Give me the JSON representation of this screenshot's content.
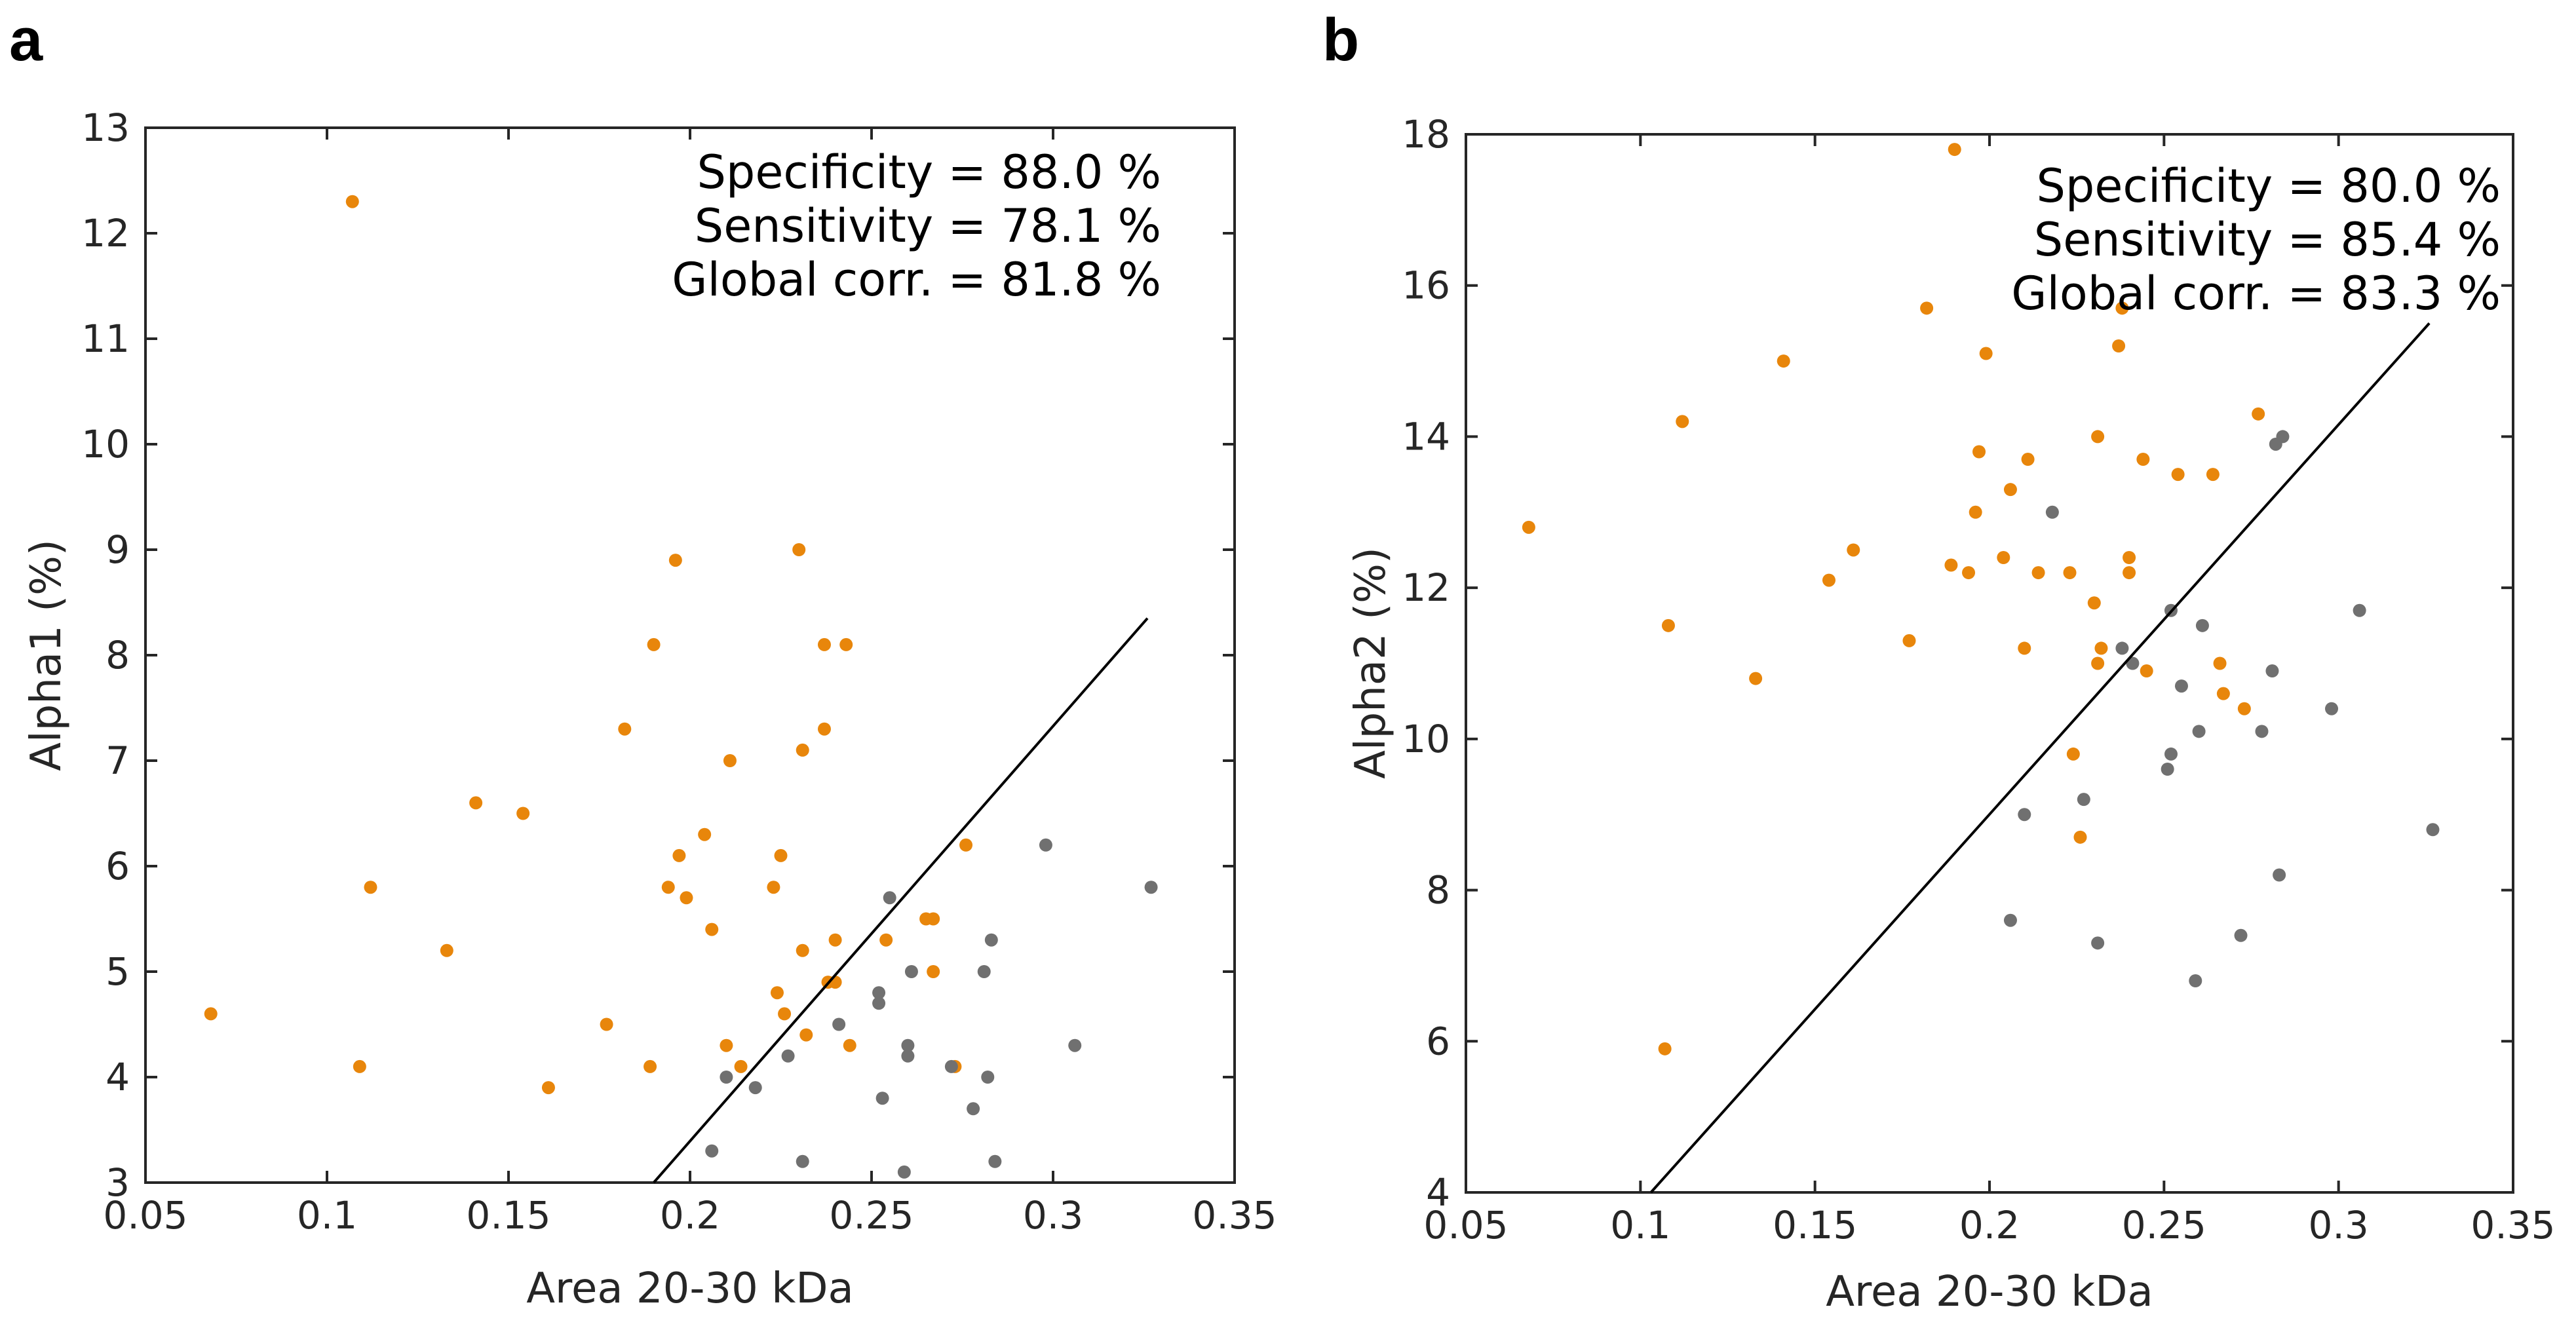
{
  "chart_data": [
    {
      "type": "scatter",
      "panel_label": "a",
      "xlabel": "Area 20-30 kDa",
      "ylabel": "Alpha1 (%)",
      "xlim": [
        0.05,
        0.35
      ],
      "ylim": [
        3,
        13
      ],
      "xticks": [
        0.05,
        0.1,
        0.15,
        0.2,
        0.25,
        0.3,
        0.35
      ],
      "xtick_labels": [
        "0.05",
        "0.1",
        "0.15",
        "0.2",
        "0.25",
        "0.3",
        "0.35"
      ],
      "yticks": [
        3,
        4,
        5,
        6,
        7,
        8,
        9,
        10,
        11,
        12,
        13
      ],
      "ytick_labels": [
        "3",
        "4",
        "5",
        "6",
        "7",
        "8",
        "9",
        "10",
        "11",
        "12",
        "13"
      ],
      "annotations": [
        "Specificity = 88.0 %",
        "Sensitivity = 78.1 %",
        "Global corr. = 81.8 %"
      ],
      "decision_line": {
        "x": [
          0.19,
          0.326
        ],
        "y": [
          3.0,
          8.35
        ]
      },
      "series": [
        {
          "name": "orange",
          "color": "#E8860B",
          "x": [
            0.068,
            0.107,
            0.109,
            0.112,
            0.133,
            0.141,
            0.154,
            0.161,
            0.177,
            0.182,
            0.189,
            0.19,
            0.194,
            0.196,
            0.197,
            0.199,
            0.204,
            0.206,
            0.21,
            0.211,
            0.214,
            0.223,
            0.224,
            0.225,
            0.226,
            0.23,
            0.231,
            0.231,
            0.232,
            0.237,
            0.237,
            0.238,
            0.24,
            0.24,
            0.243,
            0.244,
            0.254,
            0.265,
            0.267,
            0.267,
            0.273,
            0.276
          ],
          "y": [
            4.6,
            12.3,
            4.1,
            5.8,
            5.2,
            6.6,
            6.5,
            3.9,
            4.5,
            7.3,
            4.1,
            8.1,
            5.8,
            8.9,
            6.1,
            5.7,
            6.3,
            5.4,
            4.3,
            7.0,
            4.1,
            5.8,
            4.8,
            6.1,
            4.6,
            9.0,
            5.2,
            7.1,
            4.4,
            8.1,
            7.3,
            4.9,
            5.3,
            4.9,
            8.1,
            4.3,
            5.3,
            5.5,
            5.0,
            5.5,
            4.1,
            6.2
          ]
        },
        {
          "name": "gray",
          "color": "#707070",
          "x": [
            0.206,
            0.21,
            0.218,
            0.227,
            0.231,
            0.241,
            0.252,
            0.252,
            0.253,
            0.255,
            0.259,
            0.26,
            0.26,
            0.261,
            0.272,
            0.278,
            0.281,
            0.282,
            0.283,
            0.284,
            0.298,
            0.306,
            0.327
          ],
          "y": [
            3.3,
            4.0,
            3.9,
            4.2,
            3.2,
            4.5,
            4.8,
            4.7,
            3.8,
            5.7,
            3.1,
            4.3,
            4.2,
            5.0,
            4.1,
            3.7,
            5.0,
            4.0,
            5.3,
            3.2,
            6.2,
            4.3,
            5.8
          ]
        }
      ]
    },
    {
      "type": "scatter",
      "panel_label": "b",
      "xlabel": "Area 20-30 kDa",
      "ylabel": "Alpha2 (%)",
      "xlim": [
        0.05,
        0.35
      ],
      "ylim": [
        4,
        18
      ],
      "xticks": [
        0.05,
        0.1,
        0.15,
        0.2,
        0.25,
        0.3,
        0.35
      ],
      "xtick_labels": [
        "0.05",
        "0.1",
        "0.15",
        "0.2",
        "0.25",
        "0.3",
        "0.35"
      ],
      "yticks": [
        4,
        6,
        8,
        10,
        12,
        14,
        16,
        18
      ],
      "ytick_labels": [
        "4",
        "6",
        "8",
        "10",
        "12",
        "14",
        "16",
        "18"
      ],
      "annotations": [
        "Specificity = 80.0 %",
        "Sensitivity = 85.4 %",
        "Global corr. = 83.3 %"
      ],
      "decision_line": {
        "x": [
          0.103,
          0.326
        ],
        "y": [
          4.0,
          15.5
        ]
      },
      "series": [
        {
          "name": "orange",
          "color": "#E8860B",
          "x": [
            0.068,
            0.107,
            0.108,
            0.112,
            0.133,
            0.141,
            0.154,
            0.161,
            0.177,
            0.182,
            0.189,
            0.19,
            0.194,
            0.196,
            0.197,
            0.199,
            0.204,
            0.206,
            0.21,
            0.211,
            0.214,
            0.223,
            0.224,
            0.226,
            0.23,
            0.231,
            0.231,
            0.232,
            0.237,
            0.238,
            0.24,
            0.24,
            0.244,
            0.245,
            0.254,
            0.264,
            0.266,
            0.267,
            0.273,
            0.277
          ],
          "y": [
            12.8,
            5.9,
            11.5,
            14.2,
            10.8,
            15.0,
            12.1,
            12.5,
            11.3,
            15.7,
            12.3,
            17.8,
            12.2,
            13.0,
            13.8,
            15.1,
            12.4,
            13.3,
            11.2,
            13.7,
            12.2,
            12.2,
            9.8,
            8.7,
            11.8,
            11.0,
            14.0,
            11.2,
            15.2,
            15.7,
            12.4,
            12.2,
            13.7,
            10.9,
            13.5,
            13.5,
            11.0,
            10.6,
            10.4,
            14.3
          ]
        },
        {
          "name": "gray",
          "color": "#707070",
          "x": [
            0.206,
            0.21,
            0.218,
            0.227,
            0.231,
            0.238,
            0.241,
            0.251,
            0.252,
            0.252,
            0.255,
            0.259,
            0.26,
            0.261,
            0.272,
            0.278,
            0.281,
            0.282,
            0.283,
            0.284,
            0.298,
            0.306,
            0.327
          ],
          "y": [
            7.6,
            9.0,
            13.0,
            9.2,
            7.3,
            11.2,
            11.0,
            9.6,
            11.7,
            9.8,
            10.7,
            6.8,
            10.1,
            11.5,
            7.4,
            10.1,
            10.9,
            13.9,
            8.2,
            14.0,
            10.4,
            11.7,
            8.8
          ]
        }
      ]
    }
  ]
}
